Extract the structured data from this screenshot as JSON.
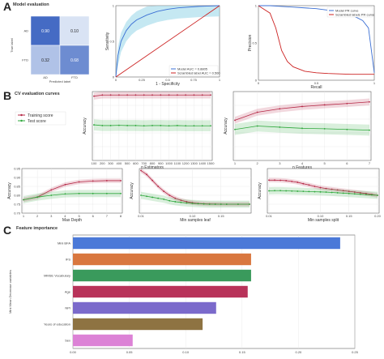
{
  "sections": {
    "a": {
      "letter": "A",
      "title": "Model evaluation"
    },
    "b": {
      "letter": "B",
      "title": "CV evaluation curves"
    },
    "c": {
      "letter": "C",
      "title": "Feature importance"
    }
  },
  "chart_data": [
    {
      "id": "confusion",
      "type": "heatmap",
      "rows": [
        "AD",
        "FTD"
      ],
      "cols": [
        "AD",
        "FTD"
      ],
      "values": [
        [
          0.9,
          0.1
        ],
        [
          0.32,
          0.68
        ]
      ],
      "cell_labels": [
        [
          "0.90",
          "0.10"
        ],
        [
          "0.32",
          "0.68"
        ]
      ],
      "xlabel": "Predicted label",
      "ylabel": "True label"
    },
    {
      "id": "roc",
      "type": "line",
      "xlabel": "1 - Specificity",
      "ylabel": "Sensitivity",
      "xlim": [
        0,
        1
      ],
      "ylim": [
        0,
        1
      ],
      "xticks": [
        "0",
        "0.25",
        "0.5",
        "0.75",
        "1"
      ],
      "yticks": [
        "0",
        "0.5",
        "1"
      ],
      "legend_position": "lower-right",
      "series": [
        {
          "name": "Model AUC = 0.8805",
          "color": "#3b6fd4",
          "x": [
            0,
            0.02,
            0.05,
            0.1,
            0.15,
            0.2,
            0.3,
            0.4,
            0.5,
            0.6,
            0.8,
            1.0
          ],
          "y": [
            0,
            0.3,
            0.5,
            0.65,
            0.74,
            0.8,
            0.87,
            0.92,
            0.95,
            0.97,
            0.99,
            1.0
          ]
        },
        {
          "name": "Scrambled label AUC = 0.500",
          "color": "#cc2222",
          "x": [
            0,
            1
          ],
          "y": [
            0,
            1
          ]
        }
      ]
    },
    {
      "id": "pr",
      "type": "line",
      "xlabel": "Recall",
      "ylabel": "Precision",
      "xlim": [
        0,
        1
      ],
      "ylim": [
        0,
        1
      ],
      "xticks": [
        "0",
        "0.5",
        "1"
      ],
      "yticks": [
        "0",
        "0.5",
        "1"
      ],
      "legend_position": "top-right",
      "series": [
        {
          "name": "Model PR curve",
          "color": "#3b6fd4",
          "x": [
            0,
            0.1,
            0.2,
            0.3,
            0.4,
            0.5,
            0.6,
            0.7,
            0.8,
            0.9,
            0.95,
            1.0
          ],
          "y": [
            1.0,
            1.0,
            0.99,
            0.98,
            0.97,
            0.96,
            0.94,
            0.92,
            0.88,
            0.8,
            0.7,
            0.1
          ]
        },
        {
          "name": "Scrambled labels PR curve",
          "color": "#cc2222",
          "x": [
            0,
            0.05,
            0.1,
            0.15,
            0.2,
            0.25,
            0.3,
            0.4,
            0.5,
            0.6,
            0.8,
            1.0
          ],
          "y": [
            1.0,
            0.95,
            0.9,
            0.7,
            0.4,
            0.25,
            0.18,
            0.12,
            0.1,
            0.09,
            0.08,
            0.08
          ]
        }
      ]
    },
    {
      "id": "cv-estimators",
      "type": "line",
      "xlabel": "n Estimators",
      "ylabel": "Accuracy",
      "x": [
        100,
        200,
        300,
        400,
        500,
        600,
        700,
        800,
        900,
        1000,
        1100,
        1200,
        1300,
        1400,
        1500
      ],
      "xticklabels": [
        "100",
        "200",
        "300",
        "400",
        "500",
        "600",
        "700",
        "800",
        "900",
        "1000",
        "1100",
        "1200",
        "1300",
        "1400",
        "1500"
      ],
      "ylim": [
        0.7,
        1.0
      ],
      "legend_position": "left",
      "series": [
        {
          "name": "Training score",
          "color": "#b52846",
          "y": [
            0.98,
            0.985,
            0.985,
            0.985,
            0.985,
            0.985,
            0.985,
            0.985,
            0.985,
            0.985,
            0.985,
            0.985,
            0.985,
            0.985,
            0.985
          ]
        },
        {
          "name": "Test score",
          "color": "#2fa83c",
          "y": [
            0.855,
            0.852,
            0.852,
            0.853,
            0.852,
            0.852,
            0.851,
            0.852,
            0.852,
            0.851,
            0.852,
            0.851,
            0.851,
            0.851,
            0.851
          ]
        }
      ]
    },
    {
      "id": "cv-features",
      "type": "line",
      "xlabel": "n Features",
      "ylabel": "Accuracy",
      "x": [
        1,
        2,
        3,
        4,
        5,
        6,
        7
      ],
      "xticklabels": [
        "1",
        "2",
        "3",
        "4",
        "5",
        "6",
        "7"
      ],
      "ylim": [
        0.7,
        1.0
      ],
      "series": [
        {
          "name": "Training score",
          "color": "#b52846",
          "y": [
            0.875,
            0.91,
            0.925,
            0.935,
            0.942,
            0.948,
            0.955
          ]
        },
        {
          "name": "Test score",
          "color": "#2fa83c",
          "y": [
            0.835,
            0.85,
            0.845,
            0.84,
            0.838,
            0.835,
            0.832
          ]
        }
      ]
    },
    {
      "id": "cv-depth",
      "type": "line",
      "xlabel": "Max Depth",
      "ylabel": "Accuracy",
      "x": [
        1,
        2,
        3,
        4,
        5,
        6,
        7,
        8
      ],
      "xticklabels": [
        "1",
        "2",
        "3",
        "4",
        "5",
        "6",
        "7",
        "8"
      ],
      "yticklabels": [
        "0.70",
        "0.75",
        "0.80",
        "0.85",
        "0.90",
        "0.95"
      ],
      "ylim": [
        0.7,
        0.95
      ],
      "series": [
        {
          "name": "Training score",
          "color": "#b52846",
          "y": [
            0.775,
            0.79,
            0.83,
            0.86,
            0.875,
            0.88,
            0.882,
            0.882
          ]
        },
        {
          "name": "Test score",
          "color": "#2fa83c",
          "y": [
            0.775,
            0.79,
            0.8,
            0.808,
            0.81,
            0.81,
            0.81,
            0.81
          ]
        }
      ]
    },
    {
      "id": "cv-leaf",
      "type": "line",
      "xlabel": "Min samples leaf",
      "ylabel": "Accuracy",
      "xlim": [
        0.01,
        0.2
      ],
      "xticks": [
        0.01,
        0.1,
        0.15
      ],
      "xticklabels": [
        "0.01",
        "0.10",
        "0.15"
      ],
      "ylim": [
        0.55,
        1.0
      ],
      "series": [
        {
          "name": "Training score",
          "color": "#b52846",
          "x": [
            0.01,
            0.02,
            0.03,
            0.04,
            0.05,
            0.06,
            0.07,
            0.08,
            0.09,
            0.1,
            0.11,
            0.12,
            0.13,
            0.14,
            0.15,
            0.16,
            0.18,
            0.2
          ],
          "y": [
            0.98,
            0.94,
            0.88,
            0.82,
            0.77,
            0.73,
            0.7,
            0.68,
            0.665,
            0.655,
            0.648,
            0.645,
            0.643,
            0.642,
            0.641,
            0.64,
            0.64,
            0.64
          ]
        },
        {
          "name": "Test score",
          "color": "#2fa83c",
          "x": [
            0.01,
            0.02,
            0.03,
            0.04,
            0.05,
            0.06,
            0.07,
            0.08,
            0.09,
            0.1,
            0.11,
            0.12,
            0.13,
            0.14,
            0.15,
            0.16,
            0.18,
            0.2
          ],
          "y": [
            0.73,
            0.72,
            0.71,
            0.7,
            0.69,
            0.675,
            0.665,
            0.658,
            0.652,
            0.648,
            0.645,
            0.642,
            0.64,
            0.64,
            0.64,
            0.64,
            0.64,
            0.64
          ]
        }
      ]
    },
    {
      "id": "cv-split",
      "type": "line",
      "xlabel": "Min samples split",
      "ylabel": "Accuracy",
      "xlim": [
        0.01,
        0.2
      ],
      "xticks": [
        0.01,
        0.1,
        0.15,
        0.2
      ],
      "xticklabels": [
        "0.01",
        "0.10",
        "0.15",
        "0.20"
      ],
      "ylim": [
        0.7,
        0.95
      ],
      "series": [
        {
          "name": "Training score",
          "color": "#b52846",
          "x": [
            0.01,
            0.02,
            0.03,
            0.04,
            0.05,
            0.06,
            0.07,
            0.08,
            0.09,
            0.1,
            0.11,
            0.12,
            0.13,
            0.14,
            0.15,
            0.16,
            0.17,
            0.18,
            0.19,
            0.2
          ],
          "y": [
            0.885,
            0.885,
            0.884,
            0.882,
            0.878,
            0.873,
            0.865,
            0.858,
            0.85,
            0.843,
            0.838,
            0.834,
            0.83,
            0.826,
            0.822,
            0.818,
            0.814,
            0.81,
            0.805,
            0.8
          ]
        },
        {
          "name": "Test score",
          "color": "#2fa83c",
          "x": [
            0.01,
            0.02,
            0.03,
            0.04,
            0.05,
            0.06,
            0.07,
            0.08,
            0.09,
            0.1,
            0.11,
            0.12,
            0.13,
            0.14,
            0.15,
            0.16,
            0.17,
            0.18,
            0.19,
            0.2
          ],
          "y": [
            0.825,
            0.826,
            0.826,
            0.825,
            0.824,
            0.823,
            0.822,
            0.821,
            0.82,
            0.819,
            0.818,
            0.816,
            0.814,
            0.812,
            0.81,
            0.808,
            0.806,
            0.804,
            0.802,
            0.8
          ]
        }
      ]
    },
    {
      "id": "feature-importance",
      "type": "bar",
      "orientation": "horizontal",
      "ylabel": "Mini Mean Decrease variables",
      "xlim": [
        0,
        0.25
      ],
      "xticks": [
        "0.00",
        "0.05",
        "0.10",
        "0.15",
        "0.20",
        "0.25"
      ],
      "categories": [
        "Mini BFA",
        "IFS",
        "MMSE Vocabulary",
        "Age",
        "NPI",
        "Years of education",
        "Sex"
      ],
      "values": [
        0.237,
        0.158,
        0.158,
        0.155,
        0.127,
        0.115,
        0.053
      ],
      "colors": [
        "#4b79d8",
        "#d9773f",
        "#3a9a5c",
        "#b8335a",
        "#7b6acb",
        "#8e7342",
        "#dc82d6"
      ]
    }
  ]
}
